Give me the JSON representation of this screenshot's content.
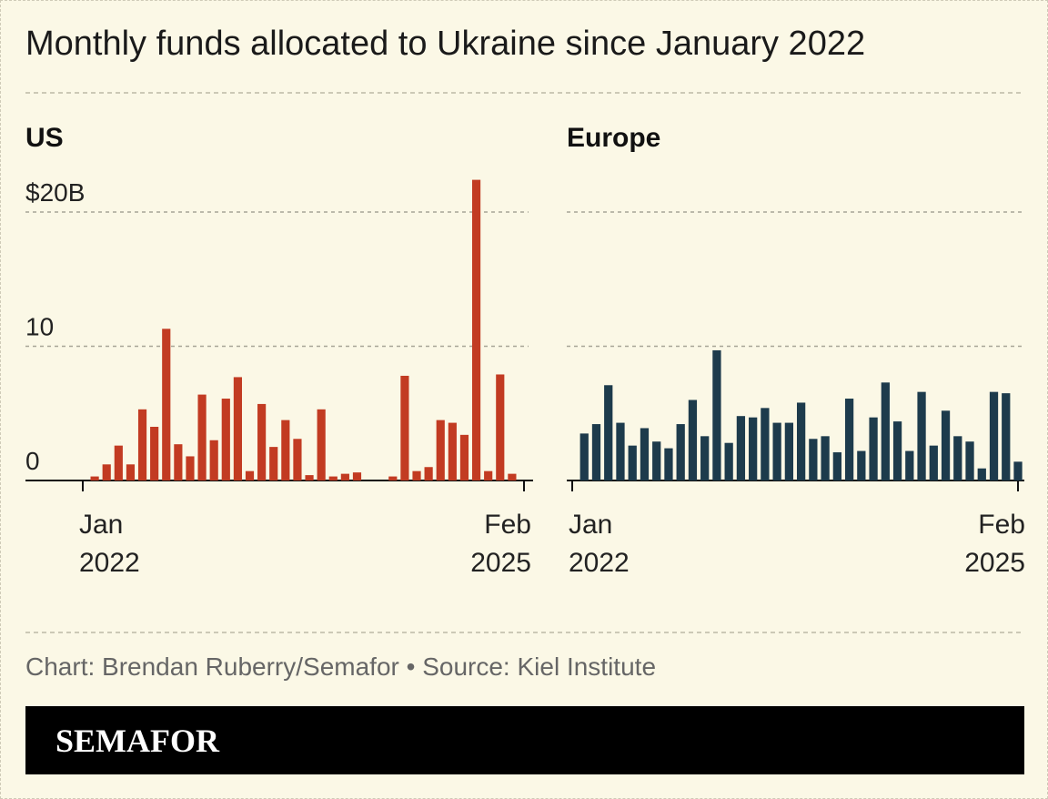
{
  "title": "Monthly funds allocated to Ukraine since January 2022",
  "credit": "Chart: Brendan Ruberry/Semafor • Source: Kiel Institute",
  "brand": "SEMAFOR",
  "chart_data": [
    {
      "type": "bar",
      "title": "US",
      "color": "#c23b22",
      "categories": [
        "Jan 2022",
        null,
        null,
        null,
        null,
        null,
        null,
        null,
        null,
        null,
        null,
        null,
        null,
        null,
        null,
        null,
        null,
        null,
        null,
        null,
        null,
        null,
        null,
        null,
        null,
        null,
        null,
        null,
        null,
        null,
        null,
        null,
        null,
        null,
        null,
        null,
        null,
        "Feb 2025"
      ],
      "values": [
        0,
        0.3,
        1.2,
        2.6,
        1.2,
        5.3,
        4.0,
        11.3,
        2.7,
        1.8,
        6.4,
        3.0,
        6.1,
        7.7,
        0.7,
        5.7,
        2.5,
        4.5,
        3.1,
        0.4,
        5.3,
        0.3,
        0.5,
        0.6,
        0,
        0,
        0.3,
        7.8,
        0.7,
        1.0,
        4.5,
        4.3,
        3.4,
        22.4,
        0.7,
        7.9,
        0.5,
        0
      ],
      "ylim": [
        0,
        22.5
      ],
      "yticks": [
        0,
        10,
        {
          "value": 20,
          "label": "$20B"
        }
      ],
      "ytick_labels": true,
      "grid": true
    },
    {
      "type": "bar",
      "title": "Europe",
      "color": "#1d3b4c",
      "categories": [
        "Jan 2022",
        null,
        null,
        null,
        null,
        null,
        null,
        null,
        null,
        null,
        null,
        null,
        null,
        null,
        null,
        null,
        null,
        null,
        null,
        null,
        null,
        null,
        null,
        null,
        null,
        null,
        null,
        null,
        null,
        null,
        null,
        null,
        null,
        null,
        null,
        null,
        null,
        "Feb 2025"
      ],
      "values": [
        0,
        3.5,
        4.2,
        7.1,
        4.3,
        2.6,
        3.9,
        2.9,
        2.4,
        4.2,
        6.0,
        3.3,
        9.7,
        2.8,
        4.8,
        4.7,
        5.4,
        4.3,
        4.3,
        5.8,
        3.1,
        3.3,
        2.1,
        6.1,
        2.2,
        4.7,
        7.3,
        4.4,
        2.2,
        6.6,
        2.6,
        5.2,
        3.3,
        2.9,
        0.9,
        6.6,
        6.5,
        1.4
      ],
      "ylim": [
        0,
        22.5
      ],
      "yticks": [
        0,
        10,
        20
      ],
      "ytick_labels": false,
      "grid": true
    }
  ]
}
